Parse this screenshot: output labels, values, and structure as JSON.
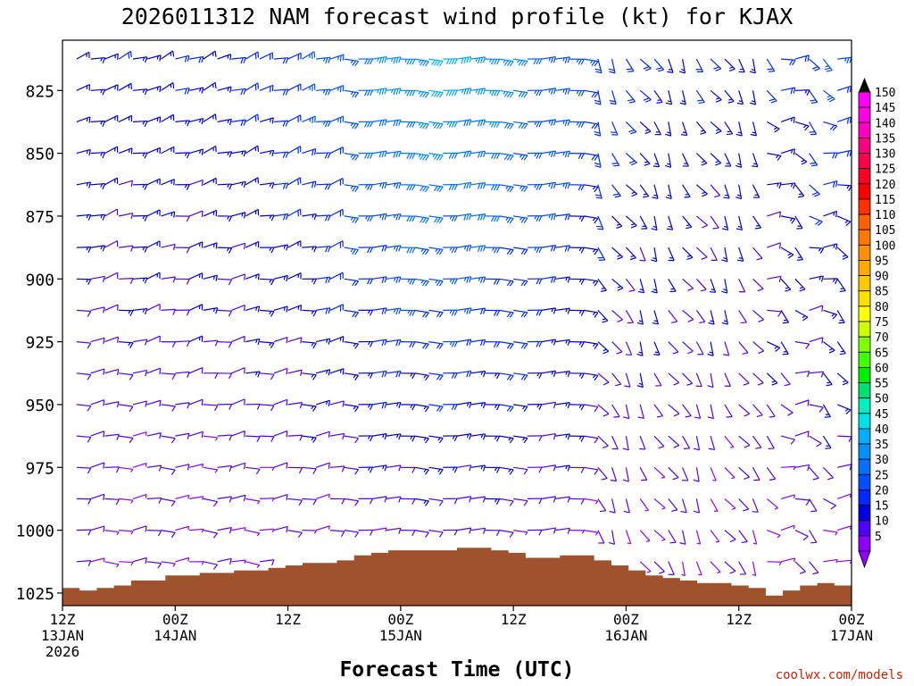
{
  "chart_data": {
    "type": "wind_profile",
    "title": "2026011312 NAM forecast wind profile (kt) for KJAX",
    "xlabel": "Forecast Time (UTC)",
    "ylabel": "",
    "credit": "coolwx.com/models",
    "x_range_hours": [
      0,
      84
    ],
    "time_step_hours": 3,
    "y_range_mb": [
      805,
      1030
    ],
    "levels_step_mb": 12.5,
    "x_ticks": [
      {
        "hour": 0,
        "line1": "12Z",
        "line2": "13JAN",
        "line3": "2026"
      },
      {
        "hour": 12,
        "line1": "00Z",
        "line2": "14JAN",
        "line3": ""
      },
      {
        "hour": 24,
        "line1": "12Z",
        "line2": "",
        "line3": ""
      },
      {
        "hour": 36,
        "line1": "00Z",
        "line2": "15JAN",
        "line3": ""
      },
      {
        "hour": 48,
        "line1": "12Z",
        "line2": "",
        "line3": ""
      },
      {
        "hour": 60,
        "line1": "00Z",
        "line2": "16JAN",
        "line3": ""
      },
      {
        "hour": 72,
        "line1": "12Z",
        "line2": "",
        "line3": ""
      },
      {
        "hour": 84,
        "line1": "00Z",
        "line2": "17JAN",
        "line3": ""
      }
    ],
    "y_ticks": [
      {
        "value": 825,
        "label": "825"
      },
      {
        "value": 850,
        "label": "850"
      },
      {
        "value": 875,
        "label": "875"
      },
      {
        "value": 900,
        "label": "900"
      },
      {
        "value": 925,
        "label": "925"
      },
      {
        "value": 950,
        "label": "950"
      },
      {
        "value": 975,
        "label": "975"
      },
      {
        "value": 1000,
        "label": "1000"
      },
      {
        "value": 1025,
        "label": "1025"
      }
    ],
    "colorbar": {
      "units": "kt",
      "levels": [
        {
          "label": "150",
          "color": "#ff00ff"
        },
        {
          "label": "145",
          "color": "#ff00e6"
        },
        {
          "label": "140",
          "color": "#ff00c0"
        },
        {
          "label": "135",
          "color": "#ff0080"
        },
        {
          "label": "130",
          "color": "#ff0050"
        },
        {
          "label": "125",
          "color": "#ff0028"
        },
        {
          "label": "120",
          "color": "#ff0000"
        },
        {
          "label": "115",
          "color": "#ff3000"
        },
        {
          "label": "110",
          "color": "#ff6000"
        },
        {
          "label": "105",
          "color": "#ff7800"
        },
        {
          "label": "100",
          "color": "#ff9000"
        },
        {
          "label": "95",
          "color": "#ffa800"
        },
        {
          "label": "90",
          "color": "#ffc800"
        },
        {
          "label": "85",
          "color": "#ffe000"
        },
        {
          "label": "80",
          "color": "#ffff00"
        },
        {
          "label": "75",
          "color": "#d0ff00"
        },
        {
          "label": "70",
          "color": "#80ff00"
        },
        {
          "label": "65",
          "color": "#40ff00"
        },
        {
          "label": "60",
          "color": "#00f000"
        },
        {
          "label": "55",
          "color": "#00e070"
        },
        {
          "label": "50",
          "color": "#00f0c0"
        },
        {
          "label": "45",
          "color": "#00e0e8"
        },
        {
          "label": "40",
          "color": "#00b0ff"
        },
        {
          "label": "35",
          "color": "#0090ff"
        },
        {
          "label": "30",
          "color": "#0070ff"
        },
        {
          "label": "25",
          "color": "#0050ff"
        },
        {
          "label": "20",
          "color": "#0028ff"
        },
        {
          "label": "15",
          "color": "#0000e0"
        },
        {
          "label": "10",
          "color": "#5000ff"
        },
        {
          "label": "5",
          "color": "#9000ff"
        }
      ]
    },
    "surface_pressure_mb": [
      1023,
      1024,
      1023,
      1022,
      1020,
      1020,
      1018,
      1018,
      1017,
      1017,
      1016,
      1016,
      1015,
      1014,
      1013,
      1013,
      1012,
      1010,
      1009,
      1008,
      1008,
      1008,
      1008,
      1007,
      1007,
      1008,
      1009,
      1011,
      1011,
      1010,
      1010,
      1012,
      1014,
      1016,
      1018,
      1019,
      1020,
      1021,
      1021,
      1022,
      1023,
      1026,
      1024,
      1022,
      1021,
      1022
    ],
    "terrain_color": "#a0522d"
  }
}
